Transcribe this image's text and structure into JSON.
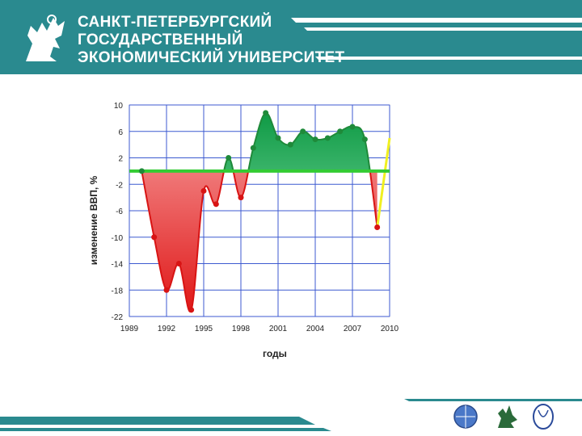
{
  "header": {
    "title_lines": [
      "САНКТ-ПЕТЕРБУРГСКИЙ",
      "ГОСУДАРСТВЕННЫЙ",
      "ЭКОНОМИЧЕСКИЙ УНИВЕРСИТЕТ"
    ]
  },
  "colors": {
    "brand_teal": "#2a8a8f",
    "negative_fill": "#f07c7c",
    "positive_fill": "#2ec06a",
    "baseline": "#33cc33",
    "grid": "#3c5ad0"
  },
  "chart_data": {
    "type": "area",
    "xlabel": "годы",
    "ylabel": "изменение ВВП, %",
    "xlim": [
      1989,
      2010
    ],
    "ylim": [
      -22,
      10
    ],
    "x_ticks": [
      1989,
      1992,
      1995,
      1998,
      2001,
      2004,
      2007,
      2010
    ],
    "y_ticks": [
      10,
      6,
      2,
      -2,
      -6,
      -10,
      -14,
      -18,
      -22
    ],
    "baseline": 0,
    "grid": true,
    "series": [
      {
        "x": [
          1990,
          1991,
          1992,
          1993,
          1994,
          1995,
          1996,
          1997,
          1998,
          1999,
          2000,
          2001,
          2002,
          2003,
          2004,
          2005,
          2006,
          2007,
          2008,
          2009
        ],
        "y": [
          0,
          -10,
          -18,
          -14,
          -21,
          -3,
          -5,
          2,
          -4,
          3.5,
          8.8,
          5,
          4,
          6,
          4.8,
          5,
          6,
          6.7,
          4.8,
          -8.5
        ]
      }
    ],
    "projection": {
      "x": [
        2009,
        2010
      ],
      "y": [
        -8.5,
        5
      ]
    }
  }
}
